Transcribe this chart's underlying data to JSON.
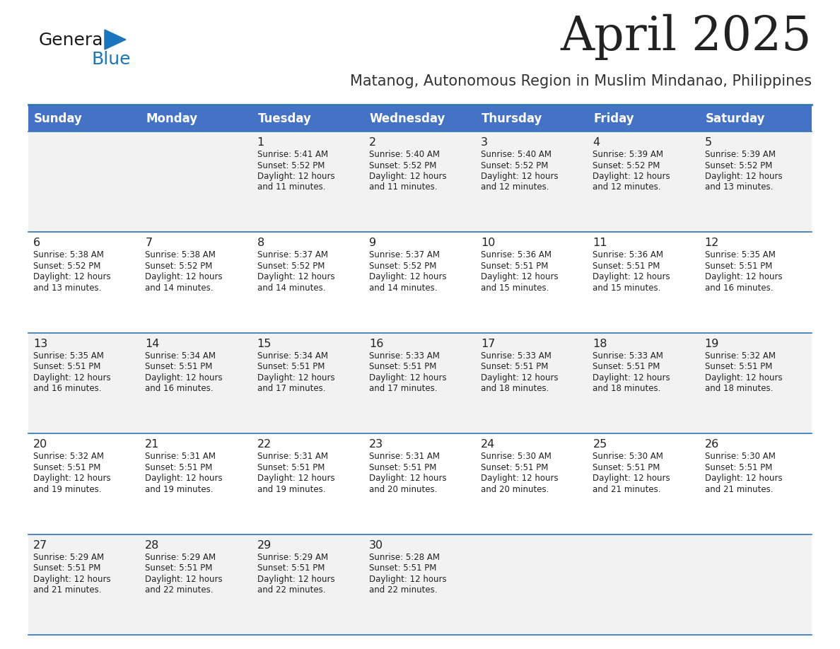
{
  "title": "April 2025",
  "subtitle": "Matanog, Autonomous Region in Muslim Mindanao, Philippines",
  "days_of_week": [
    "Sunday",
    "Monday",
    "Tuesday",
    "Wednesday",
    "Thursday",
    "Friday",
    "Saturday"
  ],
  "header_bg": "#4472C4",
  "header_text_color": "#FFFFFF",
  "row_bg_even": "#F2F2F2",
  "row_bg_odd": "#FFFFFF",
  "cell_text_color": "#222222",
  "border_color": "#2E75B6",
  "title_color": "#222222",
  "subtitle_color": "#333333",
  "logo_general_color": "#1a1a1a",
  "logo_blue_color": "#1a75bc",
  "logo_triangle_color": "#1a75bc",
  "calendar_data": [
    [
      null,
      null,
      {
        "day": 1,
        "sunrise": "5:41 AM",
        "sunset": "5:52 PM",
        "daylight": "12 hours and 11 minutes."
      },
      {
        "day": 2,
        "sunrise": "5:40 AM",
        "sunset": "5:52 PM",
        "daylight": "12 hours and 11 minutes."
      },
      {
        "day": 3,
        "sunrise": "5:40 AM",
        "sunset": "5:52 PM",
        "daylight": "12 hours and 12 minutes."
      },
      {
        "day": 4,
        "sunrise": "5:39 AM",
        "sunset": "5:52 PM",
        "daylight": "12 hours and 12 minutes."
      },
      {
        "day": 5,
        "sunrise": "5:39 AM",
        "sunset": "5:52 PM",
        "daylight": "12 hours and 13 minutes."
      }
    ],
    [
      {
        "day": 6,
        "sunrise": "5:38 AM",
        "sunset": "5:52 PM",
        "daylight": "12 hours and 13 minutes."
      },
      {
        "day": 7,
        "sunrise": "5:38 AM",
        "sunset": "5:52 PM",
        "daylight": "12 hours and 14 minutes."
      },
      {
        "day": 8,
        "sunrise": "5:37 AM",
        "sunset": "5:52 PM",
        "daylight": "12 hours and 14 minutes."
      },
      {
        "day": 9,
        "sunrise": "5:37 AM",
        "sunset": "5:52 PM",
        "daylight": "12 hours and 14 minutes."
      },
      {
        "day": 10,
        "sunrise": "5:36 AM",
        "sunset": "5:51 PM",
        "daylight": "12 hours and 15 minutes."
      },
      {
        "day": 11,
        "sunrise": "5:36 AM",
        "sunset": "5:51 PM",
        "daylight": "12 hours and 15 minutes."
      },
      {
        "day": 12,
        "sunrise": "5:35 AM",
        "sunset": "5:51 PM",
        "daylight": "12 hours and 16 minutes."
      }
    ],
    [
      {
        "day": 13,
        "sunrise": "5:35 AM",
        "sunset": "5:51 PM",
        "daylight": "12 hours and 16 minutes."
      },
      {
        "day": 14,
        "sunrise": "5:34 AM",
        "sunset": "5:51 PM",
        "daylight": "12 hours and 16 minutes."
      },
      {
        "day": 15,
        "sunrise": "5:34 AM",
        "sunset": "5:51 PM",
        "daylight": "12 hours and 17 minutes."
      },
      {
        "day": 16,
        "sunrise": "5:33 AM",
        "sunset": "5:51 PM",
        "daylight": "12 hours and 17 minutes."
      },
      {
        "day": 17,
        "sunrise": "5:33 AM",
        "sunset": "5:51 PM",
        "daylight": "12 hours and 18 minutes."
      },
      {
        "day": 18,
        "sunrise": "5:33 AM",
        "sunset": "5:51 PM",
        "daylight": "12 hours and 18 minutes."
      },
      {
        "day": 19,
        "sunrise": "5:32 AM",
        "sunset": "5:51 PM",
        "daylight": "12 hours and 18 minutes."
      }
    ],
    [
      {
        "day": 20,
        "sunrise": "5:32 AM",
        "sunset": "5:51 PM",
        "daylight": "12 hours and 19 minutes."
      },
      {
        "day": 21,
        "sunrise": "5:31 AM",
        "sunset": "5:51 PM",
        "daylight": "12 hours and 19 minutes."
      },
      {
        "day": 22,
        "sunrise": "5:31 AM",
        "sunset": "5:51 PM",
        "daylight": "12 hours and 19 minutes."
      },
      {
        "day": 23,
        "sunrise": "5:31 AM",
        "sunset": "5:51 PM",
        "daylight": "12 hours and 20 minutes."
      },
      {
        "day": 24,
        "sunrise": "5:30 AM",
        "sunset": "5:51 PM",
        "daylight": "12 hours and 20 minutes."
      },
      {
        "day": 25,
        "sunrise": "5:30 AM",
        "sunset": "5:51 PM",
        "daylight": "12 hours and 21 minutes."
      },
      {
        "day": 26,
        "sunrise": "5:30 AM",
        "sunset": "5:51 PM",
        "daylight": "12 hours and 21 minutes."
      }
    ],
    [
      {
        "day": 27,
        "sunrise": "5:29 AM",
        "sunset": "5:51 PM",
        "daylight": "12 hours and 21 minutes."
      },
      {
        "day": 28,
        "sunrise": "5:29 AM",
        "sunset": "5:51 PM",
        "daylight": "12 hours and 22 minutes."
      },
      {
        "day": 29,
        "sunrise": "5:29 AM",
        "sunset": "5:51 PM",
        "daylight": "12 hours and 22 minutes."
      },
      {
        "day": 30,
        "sunrise": "5:28 AM",
        "sunset": "5:51 PM",
        "daylight": "12 hours and 22 minutes."
      },
      null,
      null,
      null
    ]
  ],
  "fig_width": 11.88,
  "fig_height": 9.18,
  "dpi": 100
}
